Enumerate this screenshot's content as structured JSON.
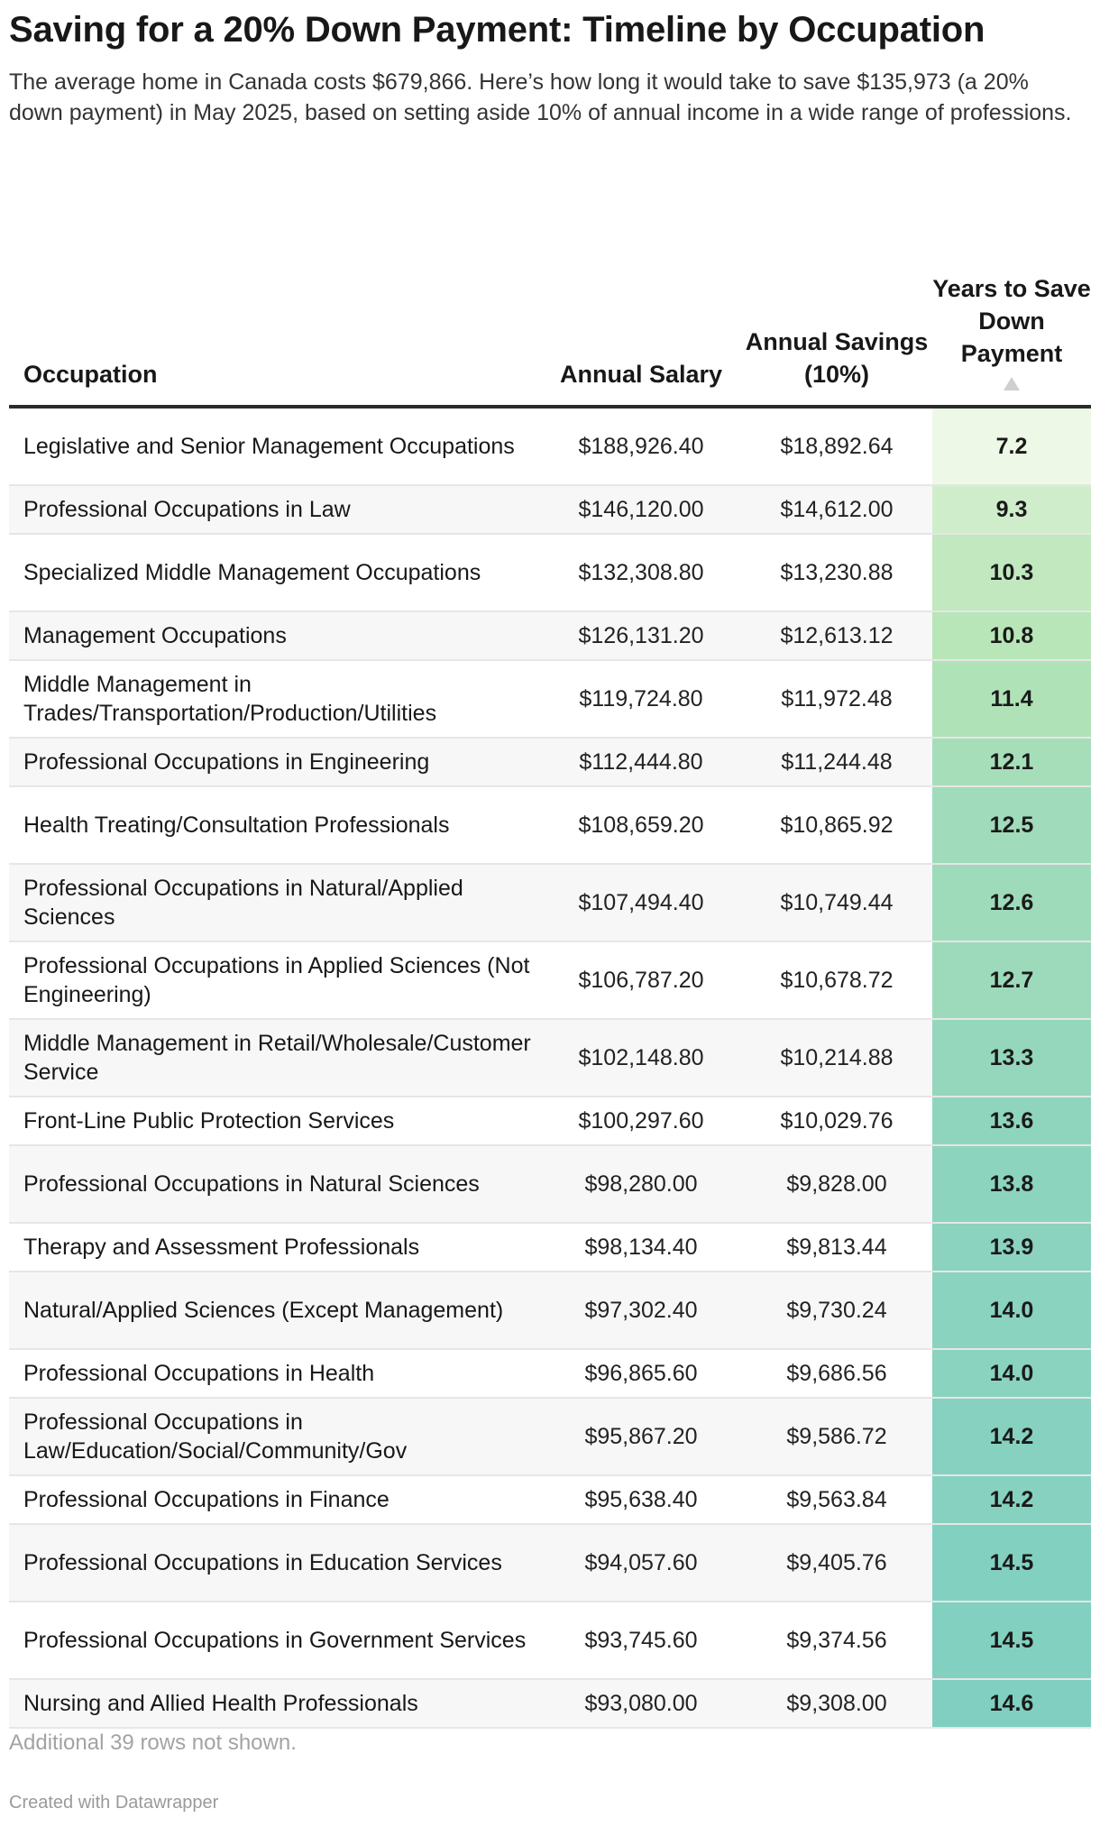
{
  "title": "Saving for a 20% Down Payment: Timeline by Occupation",
  "subtitle": "The average home in Canada costs $679,866. Here’s how long it would take to save $135,973 (a 20% down payment) in May 2025, based on setting aside 10% of annual income in a wide range of professions.",
  "footnote": "Additional 39 rows not shown.",
  "credit": "Created with Datawrapper",
  "colors": {
    "heat_low": "#eef8e6",
    "heat_mid": "#b8e5b7",
    "heat_high": "#80cfc0"
  },
  "chart_data": {
    "type": "table",
    "columns": {
      "occupation": "Occupation",
      "salary": "Annual Salary",
      "savings": "Annual Savings (10%)",
      "years": "Years to Save Down Payment"
    },
    "sort_icon": "sort-ascending-icon",
    "rows": [
      {
        "occupation": "Legislative and Senior Management Occupations",
        "salary": "$188,926.40",
        "savings": "$18,892.64",
        "years": 7.2
      },
      {
        "occupation": "Professional Occupations in Law",
        "salary": "$146,120.00",
        "savings": "$14,612.00",
        "years": 9.3
      },
      {
        "occupation": "Specialized Middle Management Occupations",
        "salary": "$132,308.80",
        "savings": "$13,230.88",
        "years": 10.3
      },
      {
        "occupation": "Management Occupations",
        "salary": "$126,131.20",
        "savings": "$12,613.12",
        "years": 10.8
      },
      {
        "occupation": "Middle Management in Trades/Transportation/Production/Utilities",
        "salary": "$119,724.80",
        "savings": "$11,972.48",
        "years": 11.4
      },
      {
        "occupation": "Professional Occupations in Engineering",
        "salary": "$112,444.80",
        "savings": "$11,244.48",
        "years": 12.1
      },
      {
        "occupation": "Health Treating/Consultation Professionals",
        "salary": "$108,659.20",
        "savings": "$10,865.92",
        "years": 12.5
      },
      {
        "occupation": "Professional Occupations in Natural/Applied Sciences",
        "salary": "$107,494.40",
        "savings": "$10,749.44",
        "years": 12.6
      },
      {
        "occupation": "Professional Occupations in Applied Sciences (Not Engineering)",
        "salary": "$106,787.20",
        "savings": "$10,678.72",
        "years": 12.7
      },
      {
        "occupation": "Middle Management in Retail/Wholesale/Customer Service",
        "salary": "$102,148.80",
        "savings": "$10,214.88",
        "years": 13.3
      },
      {
        "occupation": "Front-Line Public Protection Services",
        "salary": "$100,297.60",
        "savings": "$10,029.76",
        "years": 13.6
      },
      {
        "occupation": "Professional Occupations in Natural Sciences",
        "salary": "$98,280.00",
        "savings": "$9,828.00",
        "years": 13.8
      },
      {
        "occupation": "Therapy and Assessment Professionals",
        "salary": "$98,134.40",
        "savings": "$9,813.44",
        "years": 13.9
      },
      {
        "occupation": "Natural/Applied Sciences (Except Management)",
        "salary": "$97,302.40",
        "savings": "$9,730.24",
        "years": 14.0
      },
      {
        "occupation": "Professional Occupations in Health",
        "salary": "$96,865.60",
        "savings": "$9,686.56",
        "years": 14.0
      },
      {
        "occupation": "Professional Occupations in Law/Education/Social/Community/Gov",
        "salary": "$95,867.20",
        "savings": "$9,586.72",
        "years": 14.2
      },
      {
        "occupation": "Professional Occupations in Finance",
        "salary": "$95,638.40",
        "savings": "$9,563.84",
        "years": 14.2
      },
      {
        "occupation": "Professional Occupations in Education Services",
        "salary": "$94,057.60",
        "savings": "$9,405.76",
        "years": 14.5
      },
      {
        "occupation": "Professional Occupations in Government Services",
        "salary": "$93,745.60",
        "savings": "$9,374.56",
        "years": 14.5
      },
      {
        "occupation": "Nursing and Allied Health Professionals",
        "salary": "$93,080.00",
        "savings": "$9,308.00",
        "years": 14.6
      }
    ]
  }
}
